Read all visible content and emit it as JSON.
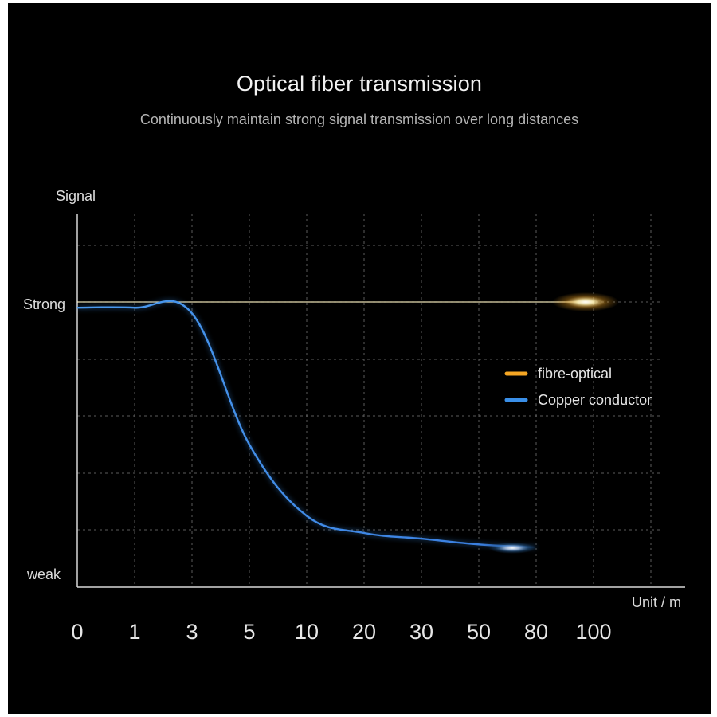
{
  "title": "Optical fiber transmission",
  "subtitle": "Continuously maintain strong signal transmission over long distances",
  "chart_data": {
    "type": "line",
    "xlabel": "Unit / m",
    "ylabel": "Signal",
    "x_ticks": [
      "0",
      "1",
      "3",
      "5",
      "10",
      "20",
      "30",
      "50",
      "80",
      "100"
    ],
    "y_tick_labels": {
      "high": "Strong",
      "low": "weak"
    },
    "grid": true,
    "legend_position": "right",
    "series": [
      {
        "name": "fibre-optical",
        "color": "#f5a623",
        "x": [
          "0",
          "1",
          "3",
          "5",
          "10",
          "20",
          "30",
          "50",
          "80",
          "100"
        ],
        "values": [
          1.0,
          1.0,
          1.0,
          1.0,
          1.0,
          1.0,
          1.0,
          1.0,
          1.0,
          1.0
        ]
      },
      {
        "name": "Copper conductor",
        "color": "#3a8fe8",
        "x": [
          "0",
          "1",
          "3",
          "5",
          "10",
          "20",
          "30",
          "50",
          "80"
        ],
        "values": [
          0.98,
          0.98,
          0.96,
          0.5,
          0.25,
          0.19,
          0.17,
          0.15,
          0.14
        ]
      }
    ]
  }
}
